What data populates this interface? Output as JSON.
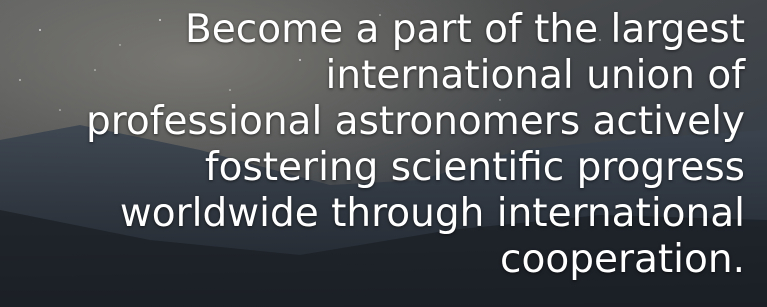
{
  "hero": {
    "lines": [
      "Become a part of the largest",
      "international union of",
      "professional astronomers actively",
      "fostering scientific progress",
      "worldwide through international",
      "cooperation."
    ]
  }
}
